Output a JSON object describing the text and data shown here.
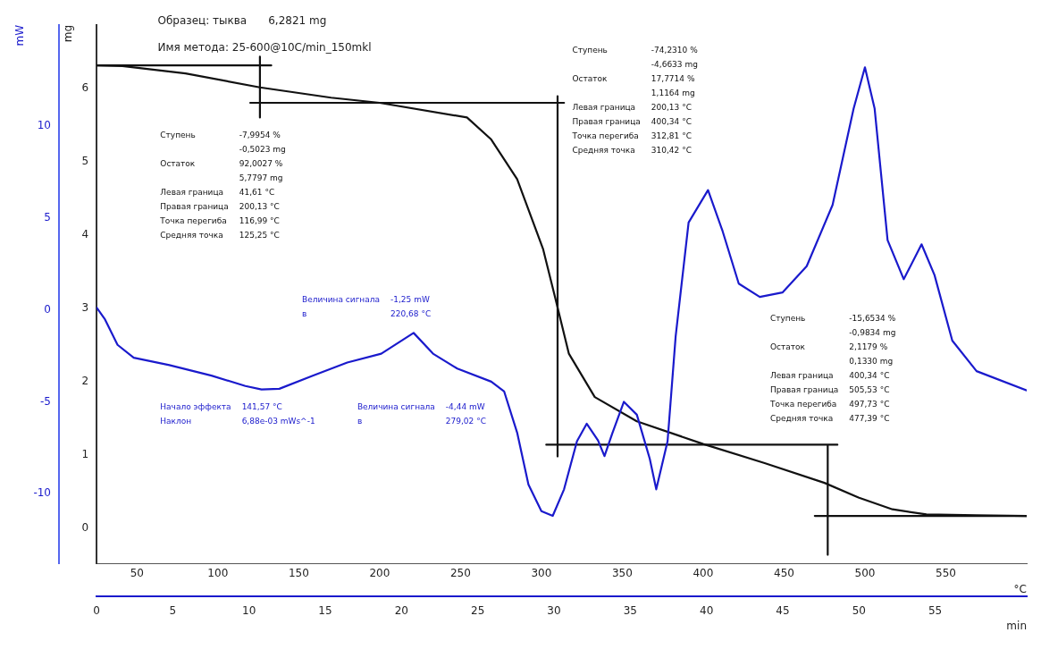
{
  "chart_data": {
    "type": "line",
    "xlabel": "°C",
    "x2label": "min",
    "ylabel": "mW",
    "y2label": "mg",
    "xlim": [
      25,
      600
    ],
    "xticks": [
      50,
      100,
      150,
      200,
      250,
      300,
      350,
      400,
      450,
      500,
      550
    ],
    "x2lim": [
      0,
      61
    ],
    "x2ticks": [
      0,
      5,
      10,
      15,
      20,
      25,
      30,
      35,
      40,
      45,
      50,
      55
    ],
    "ylim": [
      -13.8,
      15.5
    ],
    "yticks": [
      -10,
      -5,
      0,
      5,
      10
    ],
    "y2lim": [
      -0.48,
      6.86
    ],
    "y2ticks": [
      0,
      1,
      2,
      3,
      4,
      5,
      6
    ],
    "grid": false,
    "legend": false,
    "series": [
      {
        "color": "#1a1acc",
        "axis": "y",
        "x": [
          25,
          30,
          38,
          48,
          70,
          96,
          117,
          127,
          138,
          159,
          180,
          201,
          221,
          233,
          248,
          269,
          277,
          285,
          292,
          300,
          307,
          314,
          322,
          328,
          335,
          339,
          344,
          351,
          359,
          367,
          371,
          378,
          383,
          391,
          403,
          412,
          422,
          435,
          449,
          464,
          480,
          493,
          500,
          506,
          514,
          524,
          535,
          543,
          554,
          569,
          600
        ],
        "values": [
          0.14,
          -0.48,
          -1.9,
          -2.6,
          -3.0,
          -3.57,
          -4.14,
          -4.33,
          -4.29,
          -3.57,
          -2.86,
          -2.38,
          -1.25,
          -2.38,
          -3.19,
          -3.9,
          -4.44,
          -6.67,
          -9.5,
          -10.95,
          -11.2,
          -9.76,
          -7.14,
          -6.19,
          -7.1,
          -7.95,
          -6.67,
          -5.0,
          -5.7,
          -8.1,
          -9.76,
          -7.14,
          -1.43,
          4.76,
          6.52,
          4.29,
          1.43,
          0.71,
          0.95,
          2.38,
          5.71,
          10.95,
          13.2,
          10.95,
          3.8,
          1.67,
          3.57,
          1.9,
          -1.67,
          -3.33,
          -4.38
        ]
      },
      {
        "color": "#111111",
        "axis": "y2",
        "x": [
          25,
          41,
          80,
          126,
          170,
          200,
          254,
          269,
          285,
          301,
          309,
          317,
          333,
          359,
          400,
          438,
          475,
          496,
          517,
          538,
          569,
          600
        ],
        "values": [
          6.31,
          6.3,
          6.2,
          6.01,
          5.87,
          5.8,
          5.6,
          5.3,
          4.76,
          3.81,
          3.1,
          2.38,
          1.79,
          1.46,
          1.15,
          0.89,
          0.62,
          0.42,
          0.26,
          0.19,
          0.18,
          0.17
        ]
      },
      {
        "color": "#111111",
        "axis": "y2",
        "x": [
          25,
          133,
          null,
          126,
          126,
          null,
          120,
          314,
          null,
          310,
          310,
          null,
          303,
          483,
          null,
          477,
          477,
          null,
          469,
          600
        ],
        "values": [
          6.31,
          6.31,
          null,
          6.43,
          5.6,
          null,
          5.8,
          5.8,
          null,
          5.89,
          0.98,
          null,
          1.14,
          1.14,
          null,
          1.14,
          -0.36,
          null,
          0.17,
          0.17
        ]
      }
    ],
    "annotations": [
      "Образец: тыква\t6,2821 mg",
      "Имя метода: 25-600@10C/min_150mkl",
      "Ступень\t-7,9954 %\n\t-0,5023 mg\nОстаток\t92,0027 %\n\t5,7797 mg\nЛевая граница\t41,61 °C\nПравая граница\t200,13 °C\nТочка перегиба\t116,99 °C\nСредняя точка\t125,25 °C",
      "Ступень\t-74,2310 %\n\t-4,6633 mg\nОстаток\t17,7714 %\n\t1,1164 mg\nЛевая граница\t200,13 °C\nПравая граница\t400,34 °C\nТочка перегиба\t312,81 °C\nСредняя точка\t310,42 °C",
      "Ступень\t-15,6534 %\n\t-0,9834 mg\nОстаток\t2,1179 %\n\t0,1330 mg\nЛевая граница\t400,34 °C\nПравая граница\t505,53 °C\nТочка перегиба\t497,73 °C\nСредняя точка\t477,39 °C",
      "Величина сигнала\t-1,25 mW\nв\t220,68 °C",
      "Начало эффекта\t141,57 °C\nНаклон\t6,88e-03 mWs^-1",
      "Величина сигнала\t-4,44 mW\nв\t279,02 °C"
    ]
  }
}
